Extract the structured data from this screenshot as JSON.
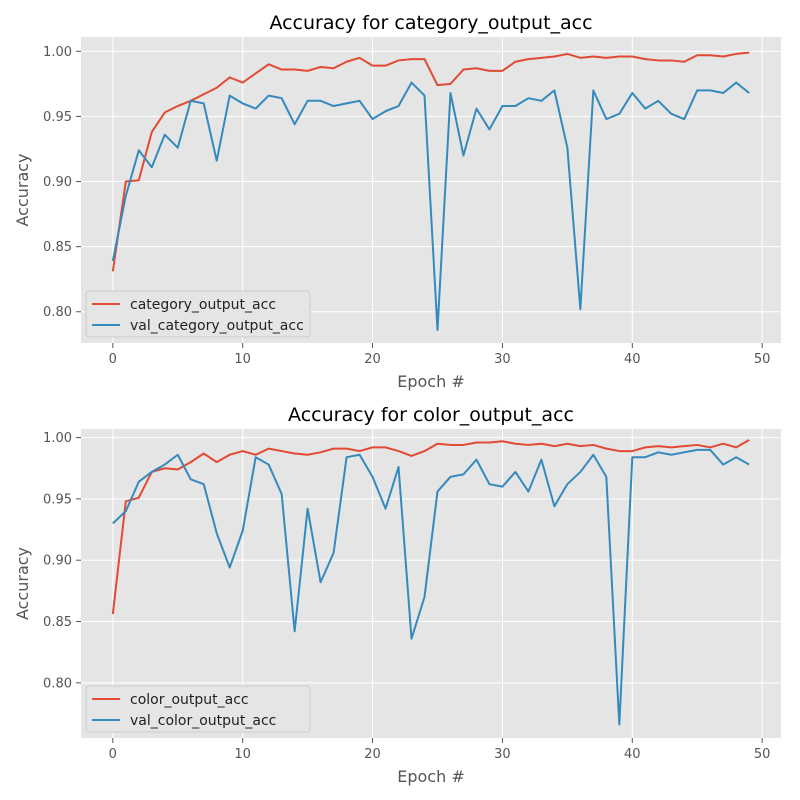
{
  "colors": {
    "train": "#E24A33",
    "val": "#348ABD",
    "plot_bg": "#E5E5E5",
    "grid": "#FFFFFF"
  },
  "chart_data": [
    {
      "type": "line",
      "title": "Accuracy for category_output_acc",
      "xlabel": "Epoch #",
      "ylabel": "Accuracy",
      "xlim": [
        -2.45,
        51.45
      ],
      "ylim": [
        0.776,
        1.011
      ],
      "xticks": [
        0,
        10,
        20,
        30,
        40,
        50
      ],
      "yticks": [
        0.8,
        0.85,
        0.9,
        0.95,
        1.0
      ],
      "grid": true,
      "legend_position": "lower-left",
      "x": [
        0,
        1,
        2,
        3,
        4,
        5,
        6,
        7,
        8,
        9,
        10,
        11,
        12,
        13,
        14,
        15,
        16,
        17,
        18,
        19,
        20,
        21,
        22,
        23,
        24,
        25,
        26,
        27,
        28,
        29,
        30,
        31,
        32,
        33,
        34,
        35,
        36,
        37,
        38,
        39,
        40,
        41,
        42,
        43,
        44,
        45,
        46,
        47,
        48,
        49
      ],
      "series": [
        {
          "name": "category_output_acc",
          "color": "#E24A33",
          "values": [
            0.831,
            0.9,
            0.901,
            0.938,
            0.953,
            0.958,
            0.962,
            0.967,
            0.972,
            0.98,
            0.976,
            0.983,
            0.99,
            0.986,
            0.986,
            0.985,
            0.988,
            0.987,
            0.992,
            0.995,
            0.989,
            0.989,
            0.993,
            0.994,
            0.994,
            0.974,
            0.975,
            0.986,
            0.987,
            0.985,
            0.985,
            0.992,
            0.994,
            0.995,
            0.996,
            0.998,
            0.995,
            0.996,
            0.995,
            0.996,
            0.996,
            0.994,
            0.993,
            0.993,
            0.992,
            0.997,
            0.997,
            0.996,
            0.998,
            0.999
          ]
        },
        {
          "name": "val_category_output_acc",
          "color": "#348ABD",
          "values": [
            0.839,
            0.889,
            0.924,
            0.911,
            0.936,
            0.926,
            0.962,
            0.96,
            0.916,
            0.966,
            0.96,
            0.956,
            0.966,
            0.964,
            0.944,
            0.962,
            0.962,
            0.958,
            0.96,
            0.962,
            0.948,
            0.954,
            0.958,
            0.976,
            0.966,
            0.786,
            0.968,
            0.92,
            0.956,
            0.94,
            0.958,
            0.958,
            0.964,
            0.962,
            0.97,
            0.926,
            0.802,
            0.97,
            0.948,
            0.952,
            0.968,
            0.956,
            0.962,
            0.952,
            0.948,
            0.97,
            0.97,
            0.968,
            0.976,
            0.968
          ]
        }
      ]
    },
    {
      "type": "line",
      "title": "Accuracy for color_output_acc",
      "xlabel": "Epoch #",
      "ylabel": "Accuracy",
      "xlim": [
        -2.45,
        51.45
      ],
      "ylim": [
        0.755,
        1.007
      ],
      "xticks": [
        0,
        10,
        20,
        30,
        40,
        50
      ],
      "yticks": [
        0.8,
        0.85,
        0.9,
        0.95,
        1.0
      ],
      "grid": true,
      "legend_position": "lower-left",
      "x": [
        0,
        1,
        2,
        3,
        4,
        5,
        6,
        7,
        8,
        9,
        10,
        11,
        12,
        13,
        14,
        15,
        16,
        17,
        18,
        19,
        20,
        21,
        22,
        23,
        24,
        25,
        26,
        27,
        28,
        29,
        30,
        31,
        32,
        33,
        34,
        35,
        36,
        37,
        38,
        39,
        40,
        41,
        42,
        43,
        44,
        45,
        46,
        47,
        48,
        49
      ],
      "series": [
        {
          "name": "color_output_acc",
          "color": "#E24A33",
          "values": [
            0.856,
            0.948,
            0.951,
            0.972,
            0.975,
            0.974,
            0.98,
            0.987,
            0.98,
            0.986,
            0.989,
            0.986,
            0.991,
            0.989,
            0.987,
            0.986,
            0.988,
            0.991,
            0.991,
            0.989,
            0.992,
            0.992,
            0.989,
            0.985,
            0.989,
            0.995,
            0.994,
            0.994,
            0.996,
            0.996,
            0.997,
            0.995,
            0.994,
            0.995,
            0.993,
            0.995,
            0.993,
            0.994,
            0.991,
            0.989,
            0.989,
            0.992,
            0.993,
            0.992,
            0.993,
            0.994,
            0.992,
            0.995,
            0.992,
            0.998
          ]
        },
        {
          "name": "val_color_output_acc",
          "color": "#348ABD",
          "values": [
            0.93,
            0.94,
            0.964,
            0.972,
            0.978,
            0.986,
            0.966,
            0.962,
            0.922,
            0.894,
            0.924,
            0.984,
            0.978,
            0.954,
            0.842,
            0.942,
            0.882,
            0.906,
            0.984,
            0.986,
            0.968,
            0.942,
            0.976,
            0.836,
            0.87,
            0.956,
            0.968,
            0.97,
            0.982,
            0.962,
            0.96,
            0.972,
            0.956,
            0.982,
            0.944,
            0.962,
            0.972,
            0.986,
            0.968,
            0.766,
            0.984,
            0.984,
            0.988,
            0.986,
            0.988,
            0.99,
            0.99,
            0.978,
            0.984,
            0.978
          ]
        }
      ]
    }
  ]
}
